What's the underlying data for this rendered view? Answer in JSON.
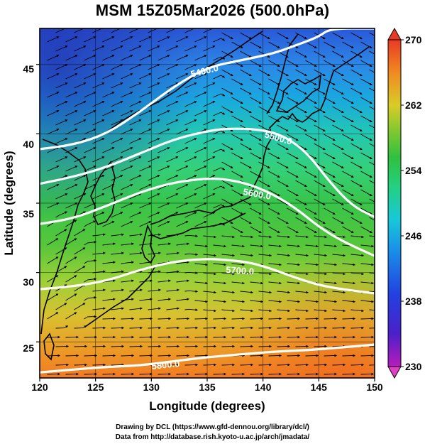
{
  "title": "MSM 15Z05Mar2026 (500.0hPa)",
  "axes": {
    "xlabel": "Longitude (degrees)",
    "ylabel": "Latitude  (degrees)",
    "xticks": [
      "120",
      "125",
      "130",
      "135",
      "140",
      "145",
      "150"
    ],
    "yticks": [
      "25",
      "30",
      "35",
      "40",
      "45"
    ]
  },
  "colorbar": {
    "ticks": [
      "270",
      "262",
      "254",
      "246",
      "238",
      "230"
    ],
    "range": [
      230,
      270
    ]
  },
  "contour_labels": [
    "5400.0",
    "5500.0",
    "5600.0",
    "5700.0",
    "5800.0"
  ],
  "footer": {
    "line1": "Drawing by DCL (https://www.gfd-dennou.org/library/dcl/)",
    "line2": "Data from http://database.rish.kyoto-u.ac.jp/arch/jmadata/"
  },
  "chart_data": {
    "type": "heatmap",
    "title": "MSM 15Z05Mar2026 (500.0hPa)",
    "xlabel": "Longitude (degrees)",
    "ylabel": "Latitude  (degrees)",
    "xlim": [
      120,
      150
    ],
    "ylim": [
      22.4,
      47.6
    ],
    "colorbar_range": [
      230,
      270
    ],
    "contours": [
      {
        "label": "5400.0",
        "lon": [
          120,
          123,
          126,
          129,
          132,
          135,
          138,
          141,
          143,
          145,
          146,
          150
        ],
        "lat": [
          38.9,
          39.2,
          40.0,
          41.6,
          43.4,
          44.8,
          45.3,
          45.8,
          46.4,
          47.0,
          47.6,
          47.6
        ]
      },
      {
        "label": "5500.0",
        "lon": [
          120,
          123,
          126,
          129,
          132,
          135,
          137,
          140,
          142,
          144,
          146,
          148,
          150
        ],
        "lat": [
          36.4,
          36.9,
          37.6,
          38.6,
          39.6,
          40.2,
          40.4,
          40.3,
          39.8,
          38.6,
          36.5,
          34.8,
          34.0
        ]
      },
      {
        "label": "5600.0",
        "lon": [
          120,
          123,
          126,
          129,
          132,
          135,
          137,
          139,
          141,
          143,
          145,
          147,
          150
        ],
        "lat": [
          33.5,
          33.9,
          34.8,
          35.8,
          36.5,
          36.8,
          36.7,
          36.3,
          35.6,
          34.6,
          33.3,
          32.3,
          31.2
        ]
      },
      {
        "label": "5700.0",
        "lon": [
          120,
          123,
          126,
          129,
          132,
          135,
          137,
          139,
          141,
          143,
          145,
          147,
          150
        ],
        "lat": [
          28.8,
          29.0,
          29.4,
          30.2,
          30.8,
          31.0,
          30.9,
          30.7,
          30.2,
          29.6,
          29.1,
          28.8,
          28.5
        ]
      },
      {
        "label": "5800.0",
        "lon": [
          120,
          123,
          126,
          129,
          132,
          135,
          138,
          141,
          144,
          147,
          150
        ],
        "lat": [
          22.8,
          23.0,
          23.2,
          23.3,
          23.6,
          23.9,
          24.1,
          24.3,
          24.4,
          24.6,
          24.8
        ]
      }
    ]
  }
}
